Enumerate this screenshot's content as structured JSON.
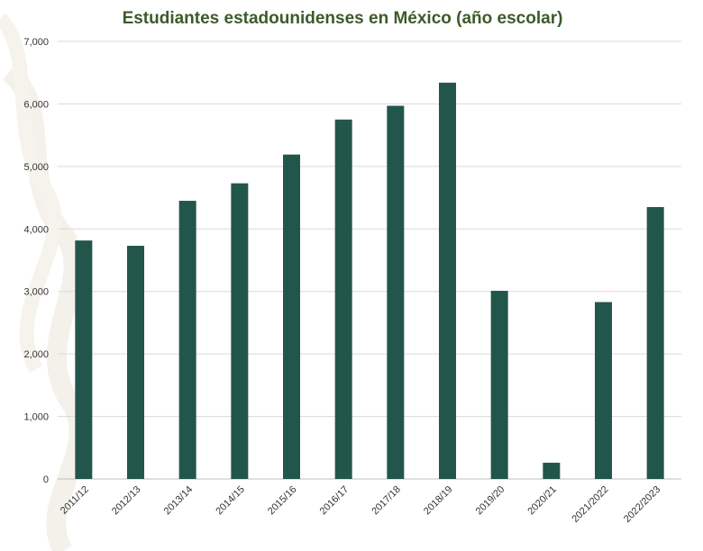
{
  "colors": {
    "bar": "#23564a",
    "title": "#3d5a2a",
    "grid": "#d9d9d9",
    "axis": "#bfbfbf"
  },
  "chart_data": {
    "type": "bar",
    "title": "Estudiantes estadounidenses en México (año escolar)",
    "xlabel": "",
    "ylabel": "",
    "ylim": [
      0,
      7000
    ],
    "yticks": [
      0,
      1000,
      2000,
      3000,
      4000,
      5000,
      6000,
      7000
    ],
    "ytick_labels": [
      "0",
      "1,000",
      "2,000",
      "3,000",
      "4,000",
      "5,000",
      "6,000",
      "7,000"
    ],
    "grid": true,
    "legend": "none",
    "categories": [
      "2011/12",
      "2012/13",
      "2013/14",
      "2014/15",
      "2015/16",
      "2016/17",
      "2017/18",
      "2018/19",
      "2019/20",
      "2020/21",
      "2021/2022",
      "2022/2023"
    ],
    "values": [
      3815,
      3730,
      4450,
      4730,
      5190,
      5750,
      5970,
      6340,
      3010,
      260,
      2830,
      4350
    ]
  }
}
